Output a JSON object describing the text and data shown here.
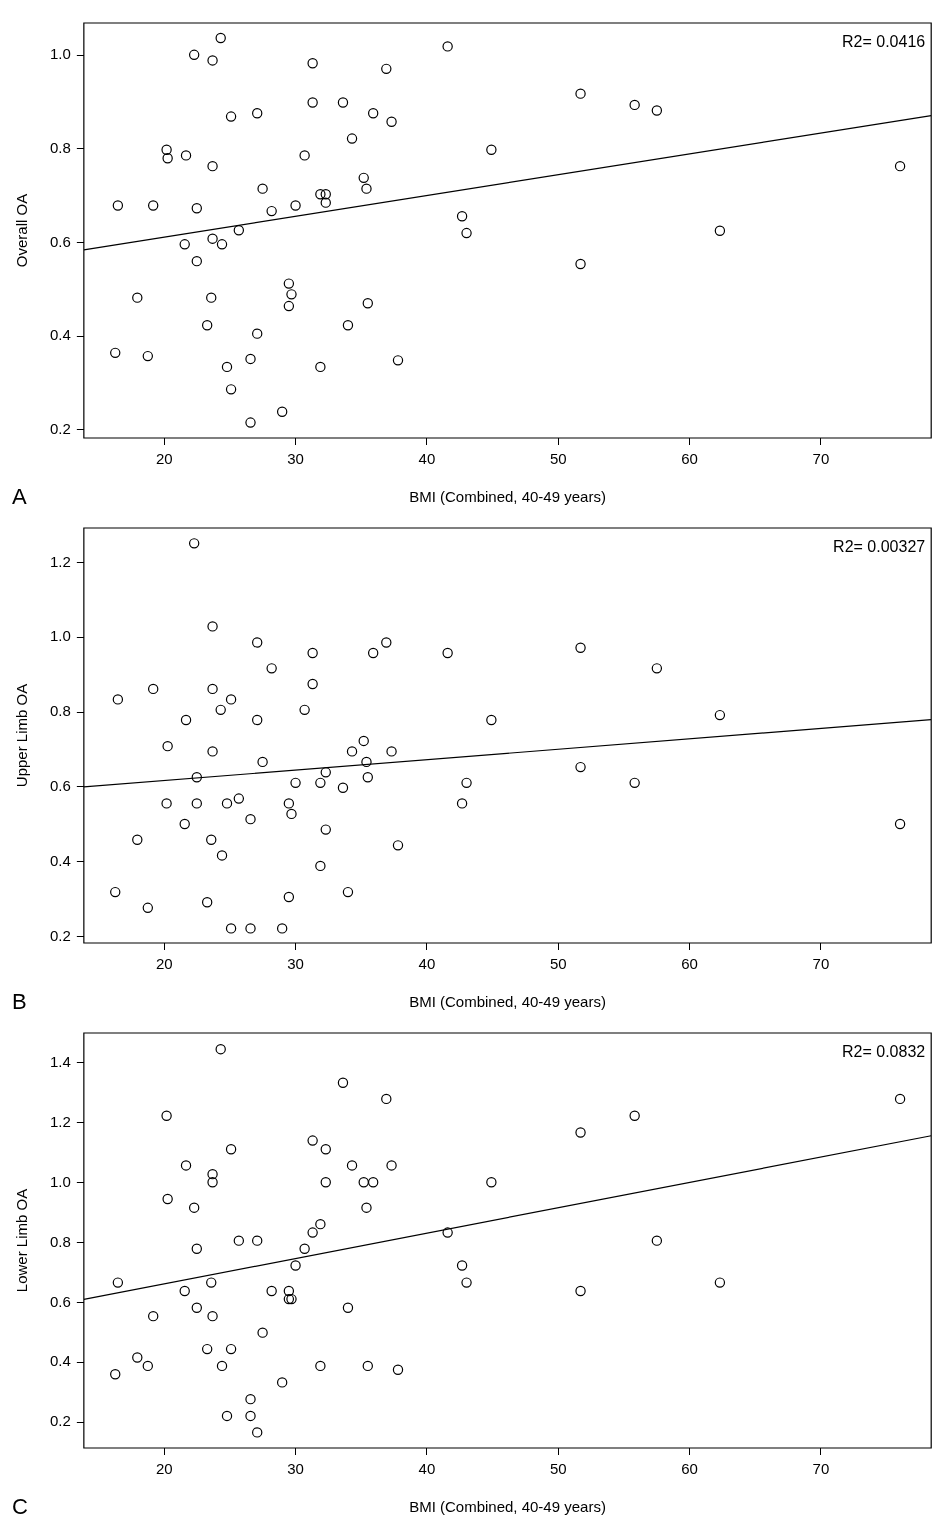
{
  "chart_data": [
    {
      "type": "scatter",
      "xlabel": "BMI (Combined, 40-49 years)",
      "ylabel": "Overall OA",
      "xlim": [
        13.88,
        78.4
      ],
      "xticks": [
        20,
        30,
        40,
        50,
        60,
        70
      ],
      "ylim": [
        0.182,
        1.069
      ],
      "yticks": [
        {
          "value": 0.2,
          "label": "0.2"
        },
        {
          "value": 0.4,
          "label": "0.4"
        },
        {
          "value": 0.6,
          "label": "0.6"
        },
        {
          "value": 0.8,
          "label": "0.8"
        },
        {
          "value": 1.0,
          "label": "1.0"
        }
      ],
      "grid": false,
      "legend": false,
      "marker": "circle",
      "annotations": [
        "R2= 0.0416",
        "A"
      ],
      "series": [
        {
          "type": "scatter",
          "color": "#000000",
          "x": [
            16.27,
            16.47,
            17.95,
            18.75,
            19.16,
            20.18,
            20.26,
            21.66,
            21.56,
            22.28,
            22.48,
            22.48,
            23.27,
            23.58,
            23.68,
            23.68,
            23.68,
            24.3,
            24.4,
            24.78,
            25.09,
            25.09,
            25.68,
            26.57,
            26.57,
            27.08,
            27.08,
            27.49,
            28.18,
            28.98,
            29.49,
            29.49,
            29.69,
            30.0,
            30.69,
            31.3,
            31.3,
            31.89,
            31.89,
            32.3,
            32.3,
            33.61,
            33.99,
            34.3,
            35.19,
            35.4,
            35.5,
            35.91,
            36.91,
            37.31,
            37.8,
            41.58,
            42.68,
            43.02,
            44.91,
            51.7,
            51.7,
            55.82,
            57.51,
            62.31,
            76.03
          ],
          "values": [
            0.364,
            0.679,
            0.482,
            0.357,
            0.679,
            0.798,
            0.78,
            0.786,
            0.596,
            1.001,
            0.673,
            0.56,
            0.423,
            0.482,
            0.989,
            0.763,
            0.608,
            1.037,
            0.596,
            0.334,
            0.869,
            0.286,
            0.626,
            0.351,
            0.215,
            0.876,
            0.405,
            0.715,
            0.667,
            0.238,
            0.512,
            0.464,
            0.489,
            0.679,
            0.786,
            0.983,
            0.899,
            0.703,
            0.334,
            0.703,
            0.685,
            0.899,
            0.423,
            0.822,
            0.738,
            0.715,
            0.47,
            0.876,
            0.971,
            0.858,
            0.348,
            1.019,
            0.656,
            0.62,
            0.798,
            0.918,
            0.554,
            0.894,
            0.882,
            0.625,
            0.763
          ]
        },
        {
          "type": "line",
          "color": "#000000",
          "marker": "none",
          "line_style": "solid",
          "x": [
            13.88,
            78.4
          ],
          "values": [
            0.584,
            0.871
          ]
        }
      ]
    },
    {
      "type": "scatter",
      "xlabel": "BMI (Combined, 40-49 years)",
      "ylabel": "Upper Limb OA",
      "xlim": [
        13.88,
        78.4
      ],
      "xticks": [
        20,
        30,
        40,
        50,
        60,
        70
      ],
      "ylim": [
        0.183,
        1.292
      ],
      "yticks": [
        {
          "value": 0.2,
          "label": "0.2"
        },
        {
          "value": 0.4,
          "label": "0.4"
        },
        {
          "value": 0.6,
          "label": "0.6"
        },
        {
          "value": 0.8,
          "label": "0.8"
        },
        {
          "value": 1.0,
          "label": "1.0"
        },
        {
          "value": 1.2,
          "label": "1.2"
        }
      ],
      "grid": false,
      "legend": false,
      "marker": "circle",
      "annotations": [
        "R2= 0.00327",
        "B"
      ],
      "series": [
        {
          "type": "scatter",
          "color": "#000000",
          "x": [
            16.27,
            16.47,
            17.95,
            18.75,
            19.16,
            20.18,
            20.26,
            21.66,
            21.56,
            22.28,
            22.48,
            22.48,
            23.27,
            23.58,
            23.68,
            23.68,
            23.68,
            24.3,
            24.4,
            24.78,
            25.09,
            25.09,
            25.68,
            26.57,
            26.57,
            27.08,
            27.08,
            27.49,
            28.18,
            28.98,
            29.49,
            29.49,
            29.69,
            30.0,
            30.69,
            31.3,
            31.3,
            31.89,
            31.89,
            32.3,
            32.3,
            33.61,
            33.99,
            34.3,
            35.19,
            35.4,
            35.5,
            35.91,
            36.91,
            37.31,
            37.8,
            41.58,
            42.68,
            43.02,
            44.91,
            51.7,
            51.7,
            55.82,
            57.51,
            62.31,
            76.03
          ],
          "values": [
            0.319,
            0.834,
            0.459,
            0.277,
            0.862,
            0.556,
            0.709,
            0.779,
            0.501,
            1.251,
            0.626,
            0.556,
            0.292,
            0.459,
            1.029,
            0.862,
            0.695,
            0.806,
            0.417,
            0.556,
            0.834,
            0.222,
            0.569,
            0.514,
            0.222,
            0.986,
            0.779,
            0.667,
            0.917,
            0.222,
            0.556,
            0.306,
            0.528,
            0.611,
            0.806,
            0.958,
            0.875,
            0.611,
            0.389,
            0.639,
            0.486,
            0.598,
            0.319,
            0.695,
            0.723,
            0.667,
            0.626,
            0.958,
            0.986,
            0.695,
            0.444,
            0.958,
            0.556,
            0.611,
            0.779,
            0.972,
            0.653,
            0.611,
            0.917,
            0.792,
            0.501
          ]
        },
        {
          "type": "line",
          "color": "#000000",
          "marker": "none",
          "line_style": "solid",
          "x": [
            13.88,
            78.4
          ],
          "values": [
            0.6,
            0.78
          ]
        }
      ]
    },
    {
      "type": "scatter",
      "xlabel": "BMI (Combined, 40-49 years)",
      "ylabel": "Lower Limb OA",
      "xlim": [
        13.88,
        78.4
      ],
      "xticks": [
        20,
        30,
        40,
        50,
        60,
        70
      ],
      "ylim": [
        0.114,
        1.499
      ],
      "yticks": [
        {
          "value": 0.2,
          "label": "0.2"
        },
        {
          "value": 0.4,
          "label": "0.4"
        },
        {
          "value": 0.6,
          "label": "0.6"
        },
        {
          "value": 0.8,
          "label": "0.8"
        },
        {
          "value": 1.0,
          "label": "1.0"
        },
        {
          "value": 1.2,
          "label": "1.2"
        },
        {
          "value": 1.4,
          "label": "1.4"
        }
      ],
      "grid": false,
      "legend": false,
      "marker": "circle",
      "annotations": [
        "R2= 0.0832",
        "C"
      ],
      "series": [
        {
          "type": "scatter",
          "color": "#000000",
          "x": [
            16.27,
            16.47,
            17.95,
            18.75,
            19.16,
            20.18,
            20.26,
            21.66,
            21.56,
            22.28,
            22.48,
            22.48,
            23.27,
            23.58,
            23.68,
            23.68,
            23.68,
            24.3,
            24.4,
            24.78,
            25.09,
            25.09,
            25.68,
            26.57,
            26.57,
            27.08,
            27.08,
            27.49,
            28.18,
            28.98,
            29.49,
            29.49,
            29.69,
            30.0,
            30.69,
            31.3,
            31.3,
            31.89,
            31.89,
            32.3,
            32.3,
            33.61,
            33.99,
            34.3,
            35.19,
            35.4,
            35.5,
            35.91,
            36.91,
            37.31,
            37.8,
            41.58,
            42.68,
            43.02,
            44.91,
            51.7,
            51.7,
            55.82,
            57.51,
            62.31,
            76.03
          ],
          "values": [
            0.36,
            0.666,
            0.416,
            0.388,
            0.554,
            1.223,
            0.945,
            1.057,
            0.638,
            0.916,
            0.779,
            0.582,
            0.444,
            0.666,
            1.028,
            1.001,
            0.554,
            1.445,
            0.388,
            0.221,
            1.111,
            0.444,
            0.806,
            0.277,
            0.221,
            0.806,
            0.166,
            0.499,
            0.638,
            0.333,
            0.638,
            0.611,
            0.611,
            0.723,
            0.779,
            1.14,
            0.833,
            0.861,
            0.388,
            1.111,
            1.001,
            1.333,
            0.582,
            1.057,
            1.001,
            0.916,
            0.388,
            1.001,
            1.279,
            1.057,
            0.375,
            0.833,
            0.723,
            0.666,
            1.001,
            1.167,
            0.638,
            1.223,
            0.806,
            0.666,
            1.279
          ]
        },
        {
          "type": "line",
          "color": "#000000",
          "marker": "none",
          "line_style": "solid",
          "x": [
            13.88,
            78.4
          ],
          "values": [
            0.61,
            1.156
          ]
        }
      ]
    }
  ]
}
